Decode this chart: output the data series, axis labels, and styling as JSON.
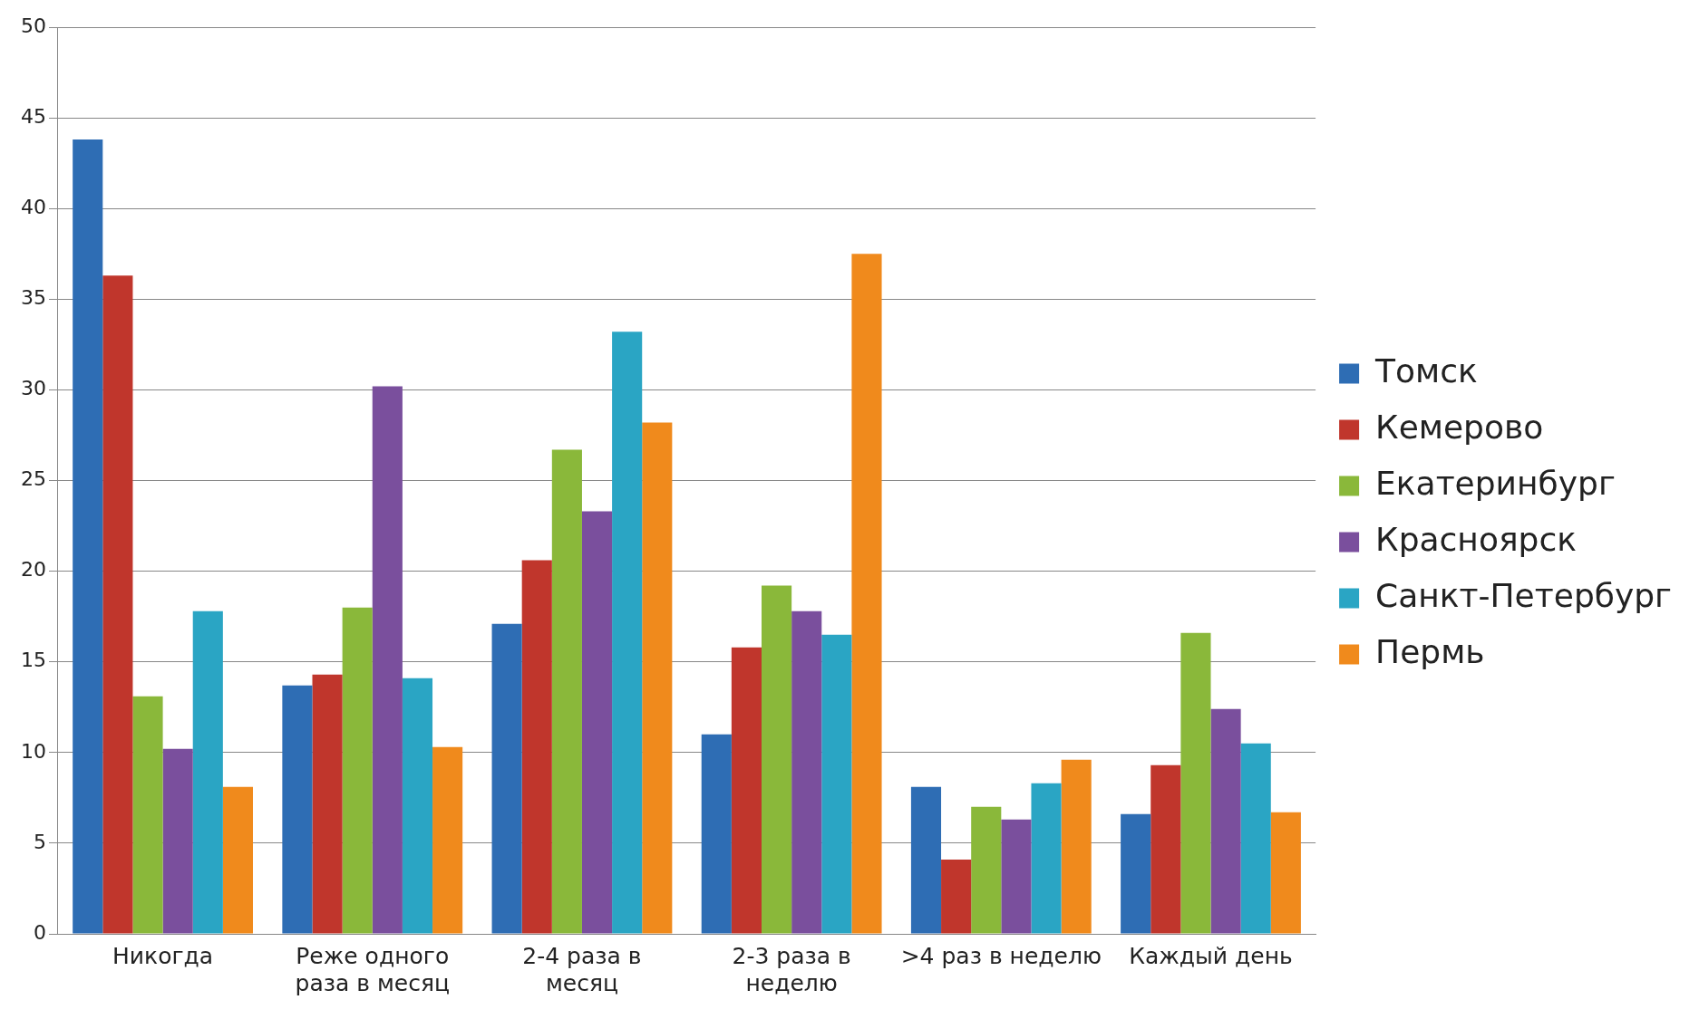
{
  "chart_data": {
    "type": "bar",
    "categories": [
      "Никогда",
      "Реже одного раза в месяц",
      "2-4 раза в месяц",
      "2-3 раза в неделю",
      ">4 раз в неделю",
      "Каждый день"
    ],
    "series": [
      {
        "name": "Томск",
        "color": "#2e6db4",
        "values": [
          43.8,
          13.7,
          17.1,
          11.0,
          8.1,
          6.6
        ]
      },
      {
        "name": "Кемерово",
        "color": "#c0362c",
        "values": [
          36.3,
          14.3,
          20.6,
          15.8,
          4.1,
          9.3
        ]
      },
      {
        "name": "Екатеринбург",
        "color": "#8ab83a",
        "values": [
          13.1,
          18.0,
          26.7,
          19.2,
          7.0,
          16.6
        ]
      },
      {
        "name": "Красноярск",
        "color": "#7a4f9d",
        "values": [
          10.2,
          30.2,
          23.3,
          17.8,
          6.3,
          12.4
        ]
      },
      {
        "name": "Санкт-Петербург",
        "color": "#2aa5c4",
        "values": [
          17.8,
          14.1,
          33.2,
          16.5,
          8.3,
          10.5
        ]
      },
      {
        "name": "Пермь",
        "color": "#f08a1c",
        "values": [
          8.1,
          10.3,
          28.2,
          37.5,
          9.6,
          6.7
        ]
      }
    ],
    "ylim": [
      0,
      50
    ],
    "yticks": [
      0,
      5,
      10,
      15,
      20,
      25,
      30,
      35,
      40,
      45,
      50
    ],
    "grid": "y",
    "legend": "right"
  }
}
